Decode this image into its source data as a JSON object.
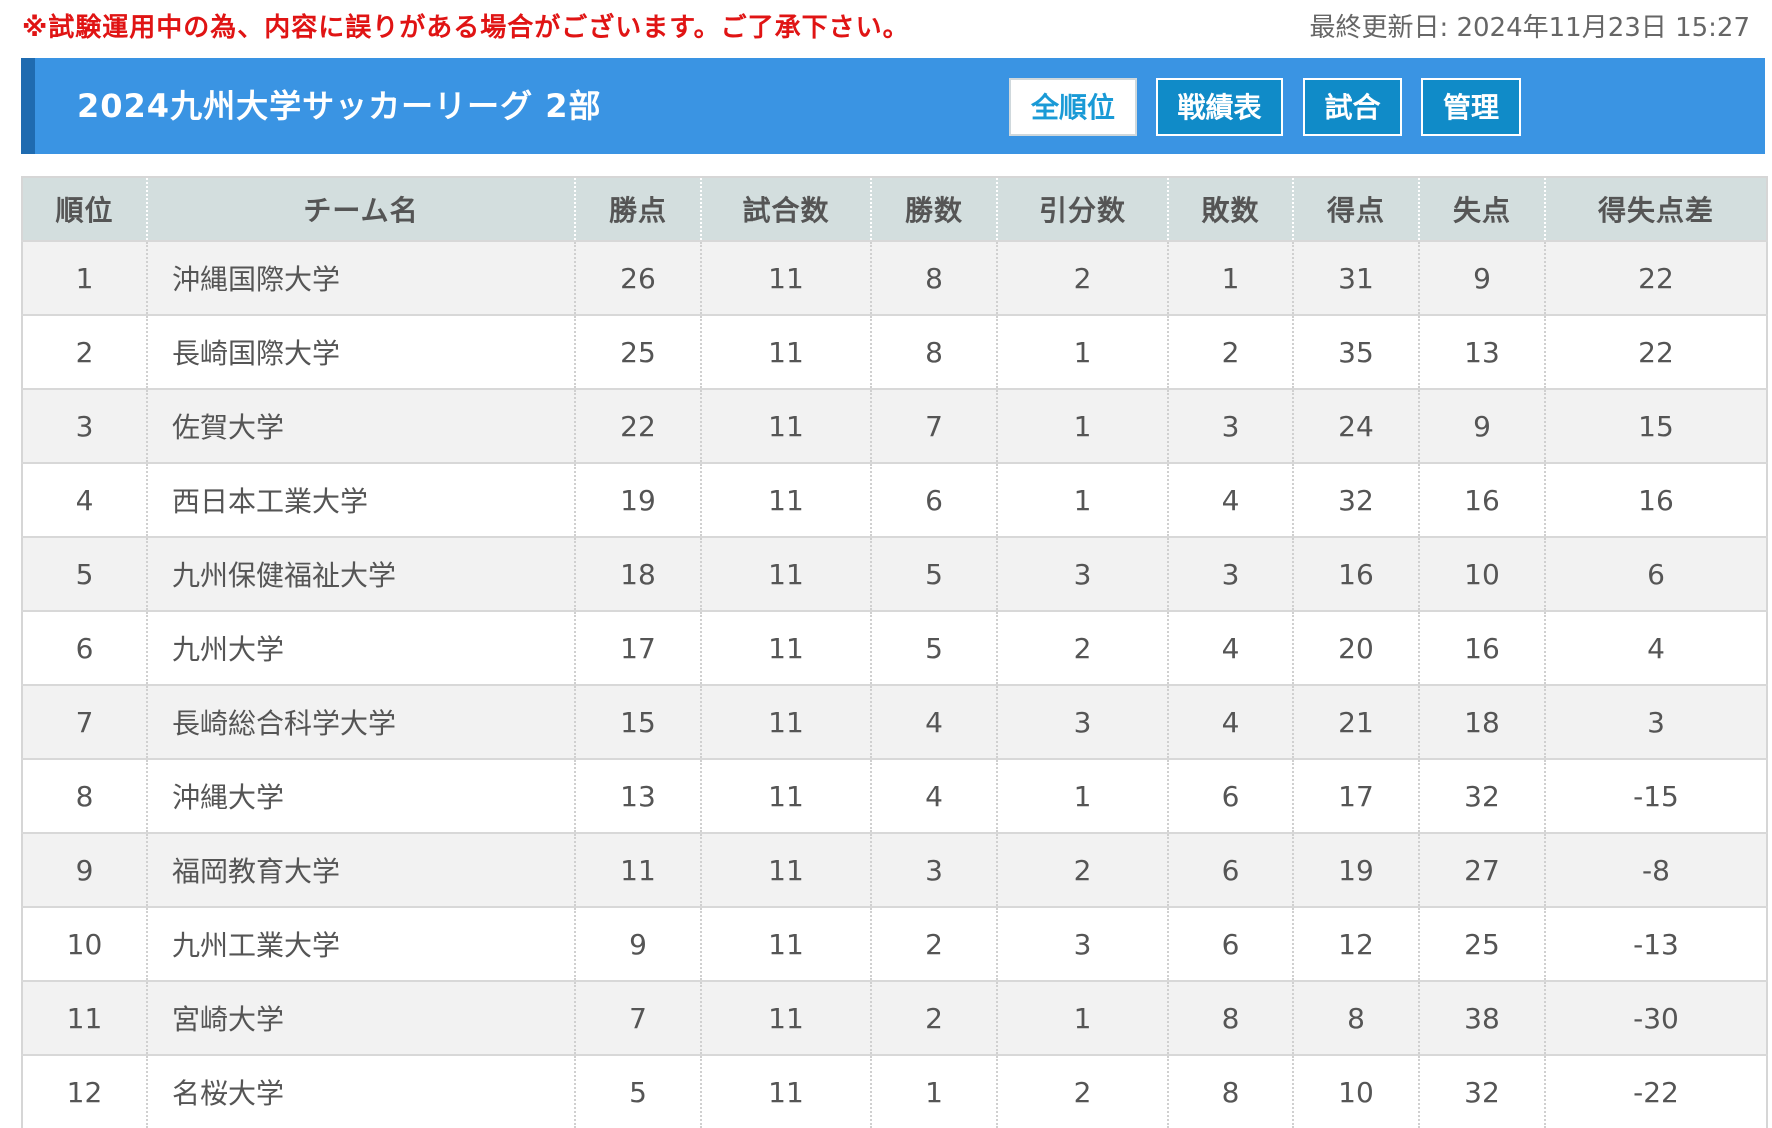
{
  "notice": "※試験運用中の為、内容に誤りがある場合がございます。ご了承下さい。",
  "updated": "最終更新日: 2024年11月23日 15:27",
  "header": {
    "title": "2024九州大学サッカーリーグ 2部",
    "buttons": [
      "全順位",
      "戦績表",
      "試合",
      "管理"
    ]
  },
  "table": {
    "columns": [
      "順位",
      "チーム名",
      "勝点",
      "試合数",
      "勝数",
      "引分数",
      "敗数",
      "得点",
      "失点",
      "得失点差"
    ],
    "rows": [
      [
        "1",
        "沖縄国際大学",
        "26",
        "11",
        "8",
        "2",
        "1",
        "31",
        "9",
        "22"
      ],
      [
        "2",
        "長崎国際大学",
        "25",
        "11",
        "8",
        "1",
        "2",
        "35",
        "13",
        "22"
      ],
      [
        "3",
        "佐賀大学",
        "22",
        "11",
        "7",
        "1",
        "3",
        "24",
        "9",
        "15"
      ],
      [
        "4",
        "西日本工業大学",
        "19",
        "11",
        "6",
        "1",
        "4",
        "32",
        "16",
        "16"
      ],
      [
        "5",
        "九州保健福祉大学",
        "18",
        "11",
        "5",
        "3",
        "3",
        "16",
        "10",
        "6"
      ],
      [
        "6",
        "九州大学",
        "17",
        "11",
        "5",
        "2",
        "4",
        "20",
        "16",
        "4"
      ],
      [
        "7",
        "長崎総合科学大学",
        "15",
        "11",
        "4",
        "3",
        "4",
        "21",
        "18",
        "3"
      ],
      [
        "8",
        "沖縄大学",
        "13",
        "11",
        "4",
        "1",
        "6",
        "17",
        "32",
        "-15"
      ],
      [
        "9",
        "福岡教育大学",
        "11",
        "11",
        "3",
        "2",
        "6",
        "19",
        "27",
        "-8"
      ],
      [
        "10",
        "九州工業大学",
        "9",
        "11",
        "2",
        "3",
        "6",
        "12",
        "25",
        "-13"
      ],
      [
        "11",
        "宮崎大学",
        "7",
        "11",
        "2",
        "1",
        "8",
        "8",
        "38",
        "-30"
      ],
      [
        "12",
        "名桜大学",
        "5",
        "11",
        "1",
        "2",
        "8",
        "10",
        "32",
        "-22"
      ]
    ]
  },
  "colors": {
    "notice": "#e01414",
    "header_bg": "#3a94e3",
    "header_accent": "#1f6bb0",
    "button_bg": "#108bc8",
    "table_header_bg": "#d3dede"
  }
}
